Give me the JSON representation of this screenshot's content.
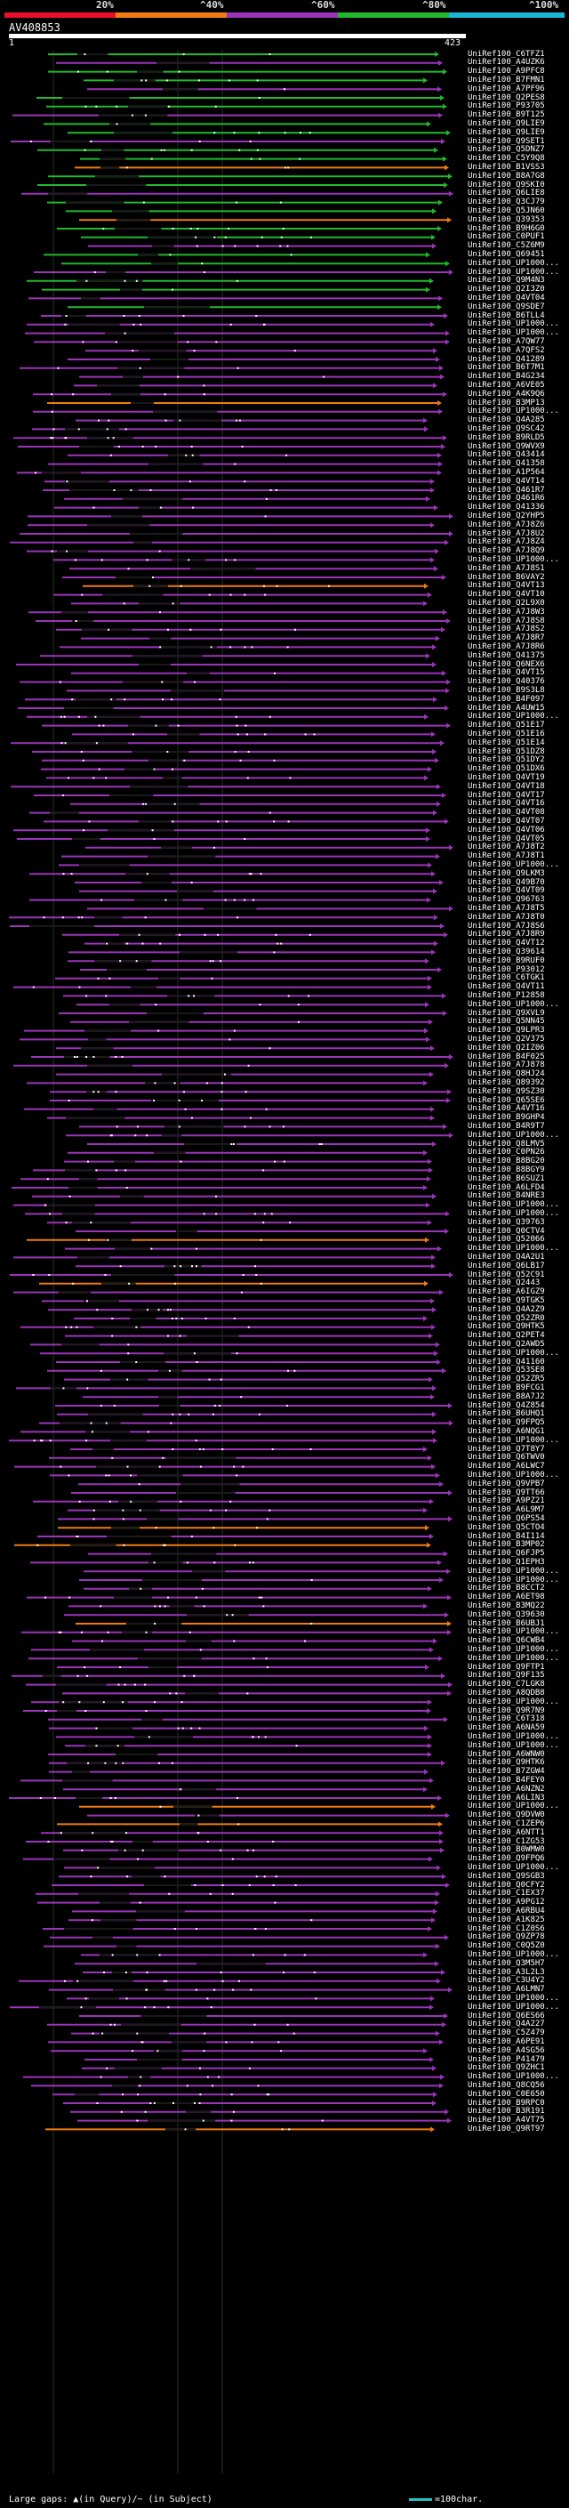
{
  "legend": {
    "labels": [
      "20%",
      "^40%",
      "^60%",
      "^80%",
      "^100%"
    ],
    "colors": [
      "#e8102a",
      "#f07b12",
      "#9b34b8",
      "#22b82c",
      "#1ab8d8"
    ]
  },
  "query": {
    "title": "AV408853",
    "start": "1",
    "end": "423"
  },
  "hits": [
    "UniRef100_C6TFZ1",
    "UniRef100_A4UZK6",
    "UniRef100_A9PFC8",
    "UniRef100_B7FMN1",
    "UniRef100_A7PF96",
    "UniRef100_Q2PES8",
    "UniRef100_P93705",
    "UniRef100_B9T125",
    "UniRef100_Q9LIE9",
    "UniRef100_Q9LIE9",
    "UniRef100_Q9SET1",
    "UniRef100_Q5DNZ7",
    "UniRef100_C5Y9Q8",
    "UniRef100_B1VSS3",
    "UniRef100_B8A7G8",
    "UniRef100_Q9SKI0",
    "UniRef100_Q6LIE8",
    "UniRef100_Q3CJ79",
    "UniRef100_Q5JN60",
    "UniRef100_Q39353",
    "UniRef100_B9H6G0",
    "UniRef100_C0PUF1",
    "UniRef100_C5Z6M9",
    "UniRef100_Q69451",
    "UniRef100_UP1000...",
    "UniRef100_UP1000...",
    "UniRef100_Q9M4N3",
    "UniRef100_Q2I3Z0",
    "UniRef100_Q4VT04",
    "UniRef100_Q9SDE7",
    "UniRef100_B6TLL4",
    "UniRef100_UP1000...",
    "UniRef100_UP1000...",
    "UniRef100_A7QW77",
    "UniRef100_A7QFS2",
    "UniRef100_Q41289",
    "UniRef100_B6T7M1",
    "UniRef100_B4G234",
    "UniRef100_A6VE05",
    "UniRef100_A4K9Q6",
    "UniRef100_B3MP13",
    "UniRef100_UP1000...",
    "UniRef100_Q4A285",
    "UniRef100_Q9SC42",
    "UniRef100_B9RLD5",
    "UniRef100_Q9WVX9",
    "UniRef100_Q43414",
    "UniRef100_Q41358",
    "UniRef100_A1P564",
    "UniRef100_Q4VT14",
    "UniRef100_Q461R7",
    "UniRef100_Q461R6",
    "UniRef100_Q41336",
    "UniRef100_Q2YHP5",
    "UniRef100_A7J8Z6",
    "UniRef100_A7J8U2",
    "UniRef100_A7J8Z4",
    "UniRef100_A7J8Q9",
    "UniRef100_UP1000...",
    "UniRef100_A7J8S1",
    "UniRef100_B6VAY2",
    "UniRef100_Q4VT13",
    "UniRef100_Q4VT10",
    "UniRef100_Q2L9X0",
    "UniRef100_A7J8W3",
    "UniRef100_A7J8S8",
    "UniRef100_A7J8S2",
    "UniRef100_A7J8R7",
    "UniRef100_A7J8R6",
    "UniRef100_Q41375",
    "UniRef100_Q6NEX6",
    "UniRef100_Q4VT15",
    "UniRef100_Q40376",
    "UniRef100_B9S3L8",
    "UniRef100_B4F097",
    "UniRef100_A4UW15",
    "UniRef100_UP1000...",
    "UniRef100_Q51E17",
    "UniRef100_Q51E16",
    "UniRef100_Q51E14",
    "UniRef100_Q51DZ8",
    "UniRef100_Q51DY2",
    "UniRef100_Q51DX6",
    "UniRef100_Q4VT19",
    "UniRef100_Q4VT18",
    "UniRef100_Q4VT17",
    "UniRef100_Q4VT16",
    "UniRef100_Q4VT08",
    "UniRef100_Q4VT07",
    "UniRef100_Q4VT06",
    "UniRef100_Q4VT05",
    "UniRef100_A7J8T2",
    "UniRef100_A7J8T1",
    "UniRef100_UP1000...",
    "UniRef100_Q9LKM3",
    "UniRef100_Q49B70",
    "UniRef100_Q4VT09",
    "UniRef100_Q96763",
    "UniRef100_A7J8T5",
    "UniRef100_A7J8T0",
    "UniRef100_A7J8S6",
    "UniRef100_A7J8R9",
    "UniRef100_Q4VT12",
    "UniRef100_Q39614",
    "UniRef100_B9RUF0",
    "UniRef100_P93012",
    "UniRef100_C6TGK1",
    "UniRef100_Q4VT11",
    "UniRef100_P12858",
    "UniRef100_UP1000...",
    "UniRef100_Q9XVL9",
    "UniRef100_Q5NN45",
    "UniRef100_Q9LPR3",
    "UniRef100_Q2V375",
    "UniRef100_Q2IZ06",
    "UniRef100_B4F025",
    "UniRef100_A7J878",
    "UniRef100_Q8HJ24",
    "UniRef100_Q89392",
    "UniRef100_Q9SZ30",
    "UniRef100_Q65SE6",
    "UniRef100_A4VT16",
    "UniRef100_B9GHP4",
    "UniRef100_B4R9T7",
    "UniRef100_UP1000...",
    "UniRef100_Q8LMV5",
    "UniRef100_C0PN26",
    "UniRef100_B8BG20",
    "UniRef100_B8BGY9",
    "UniRef100_B6SUZ1",
    "UniRef100_A6LFD4",
    "UniRef100_B4NRE3",
    "UniRef100_UP1000...",
    "UniRef100_UP1000...",
    "UniRef100_Q39763",
    "UniRef100_Q0CTV4",
    "UniRef100_Q52066",
    "UniRef100_UP1000...",
    "UniRef100_Q4A2U1",
    "UniRef100_Q6LB17",
    "UniRef100_Q52C91",
    "UniRef100_Q2443",
    "UniRef100_A6IGZ9",
    "UniRef100_Q9TGK5",
    "UniRef100_Q4A2Z9",
    "UniRef100_Q52ZR0",
    "UniRef100_Q9HTK5",
    "UniRef100_Q2PET4",
    "UniRef100_Q2AWD5",
    "UniRef100_UP1000...",
    "UniRef100_Q41160",
    "UniRef100_Q53SE8",
    "UniRef100_Q52ZR5",
    "UniRef100_B9FCG1",
    "UniRef100_B8A7J2",
    "UniRef100_Q4Z854",
    "UniRef100_B6UHQ1",
    "UniRef100_Q9FPQ5",
    "UniRef100_A6NQG1",
    "UniRef100_UP1000...",
    "UniRef100_Q7T8Y7",
    "UniRef100_Q6TWV0",
    "UniRef100_A6LWC7",
    "UniRef100_UP1000...",
    "UniRef100_Q9VPB7",
    "UniRef100_Q9TT66",
    "UniRef100_A9PZ21",
    "UniRef100_A6L9M7",
    "UniRef100_Q6PS54",
    "UniRef100_Q5CTO4",
    "UniRef100_B4I114",
    "UniRef100_B3MP02",
    "UniRef100_Q6FJP5",
    "UniRef100_Q1EPH3",
    "UniRef100_UP1000...",
    "UniRef100_UP1000...",
    "UniRef100_B8CCT2",
    "UniRef100_A6ET98",
    "UniRef100_B3MQ22",
    "UniRef100_Q39630",
    "UniRef100_B6UBJ1",
    "UniRef100_UP1000...",
    "UniRef100_Q6CWB4",
    "UniRef100_UP1000...",
    "UniRef100_UP1000...",
    "UniRef100_Q9FTP1",
    "UniRef100_Q9F135",
    "UniRef100_C7LGK8",
    "UniRef100_A8QDB8",
    "UniRef100_UP1000...",
    "UniRef100_Q9R7N9",
    "UniRef100_C6T318",
    "UniRef100_A6NA59",
    "UniRef100_UP1000...",
    "UniRef100_UP1000...",
    "UniRef100_A6WNW0",
    "UniRef100_Q9HTK6",
    "UniRef100_B7ZGW4",
    "UniRef100_B4FEY0",
    "UniRef100_A6NZN2",
    "UniRef100_A6LIN3",
    "UniRef100_UP1000...",
    "UniRef100_Q9DVW0",
    "UniRef100_C1ZEP6",
    "UniRef100_A6NTT1",
    "UniRef100_C1ZG53",
    "UniRef100_B0WMW0",
    "UniRef100_Q9FPQ6",
    "UniRef100_UP1000...",
    "UniRef100_Q9SGB3",
    "UniRef100_Q0CFY2",
    "UniRef100_C1EX37",
    "UniRef100_A9PG12",
    "UniRef100_A6RBU4",
    "UniRef100_A1K825",
    "UniRef100_C1Z0S6",
    "UniRef100_Q9ZP78",
    "UniRef100_C0Q5Z0",
    "UniRef100_UP1000...",
    "UniRef100_Q3M5H7",
    "UniRef100_A3L2L3",
    "UniRef100_C3U4Y2",
    "UniRef100_A6LMN7",
    "UniRef100_UP1000...",
    "UniRef100_UP1000...",
    "UniRef100_Q6ES66",
    "UniRef100_Q4A227",
    "UniRef100_C5Z479",
    "UniRef100_A6PE91",
    "UniRef100_A4SG56",
    "UniRef100_P41479",
    "UniRef100_Q9ZHC1",
    "UniRef100_UP1000...",
    "UniRef100_Q8CQ56",
    "UniRef100_C0E650",
    "UniRef100_B9RPC0",
    "UniRef100_B3R191",
    "UniRef100_A4VT75",
    "UniRef100_Q9RT97"
  ],
  "footer": {
    "gaps_text": "Large gaps: ▲(in Query)/~ (in Subject)",
    "scale_text": "=100char."
  }
}
